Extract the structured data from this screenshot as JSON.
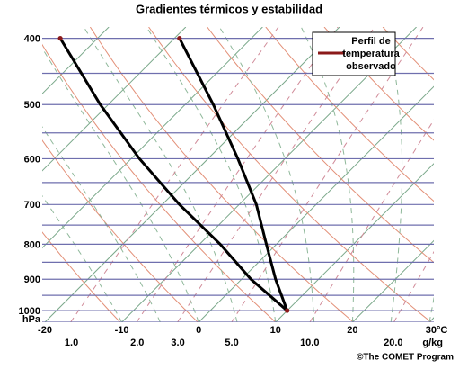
{
  "chart_data": {
    "type": "skewt",
    "title": "Gradientes térmicos y estabilidad",
    "y": [
      1000,
      900,
      800,
      700,
      600,
      500,
      400
    ],
    "series": [
      {
        "color": "#000000",
        "values": [
          11.5,
          6.8,
          2.8,
          -2.5,
          -7.7,
          -12.8,
          -18
        ]
      },
      {
        "color": "#000000",
        "values": [
          11.5,
          10,
          8.8,
          7.5,
          5.1,
          1.9,
          -2.5
        ]
      }
    ],
    "marker_color": "#8b1a1a",
    "xlim": [
      -20,
      30
    ],
    "xticks": [
      -20,
      -10,
      0,
      10,
      20,
      {
        "value": 30,
        "label": "30°C"
      }
    ],
    "ylim": [
      1040,
      385
    ],
    "log_y": true,
    "yticks": [
      400,
      500,
      600,
      700,
      800,
      900,
      1000
    ],
    "y_unit": "hPa",
    "mixing_ratio_ticks": [
      {
        "value": 1,
        "label": "1.0"
      },
      {
        "value": 2,
        "label": "2.0"
      },
      {
        "value": 3,
        "label": "3.0"
      },
      {
        "value": 5,
        "label": "5.0"
      },
      {
        "value": 10,
        "label": "10.0"
      },
      {
        "value": 20,
        "label": "20.0"
      }
    ],
    "mixing_ratio_unit": "g/kg",
    "legend": {
      "label_lines": [
        "Perfil de",
        "temperatura",
        "observado"
      ],
      "color": "#8b1a1a"
    },
    "credit": "©The COMET Program"
  }
}
